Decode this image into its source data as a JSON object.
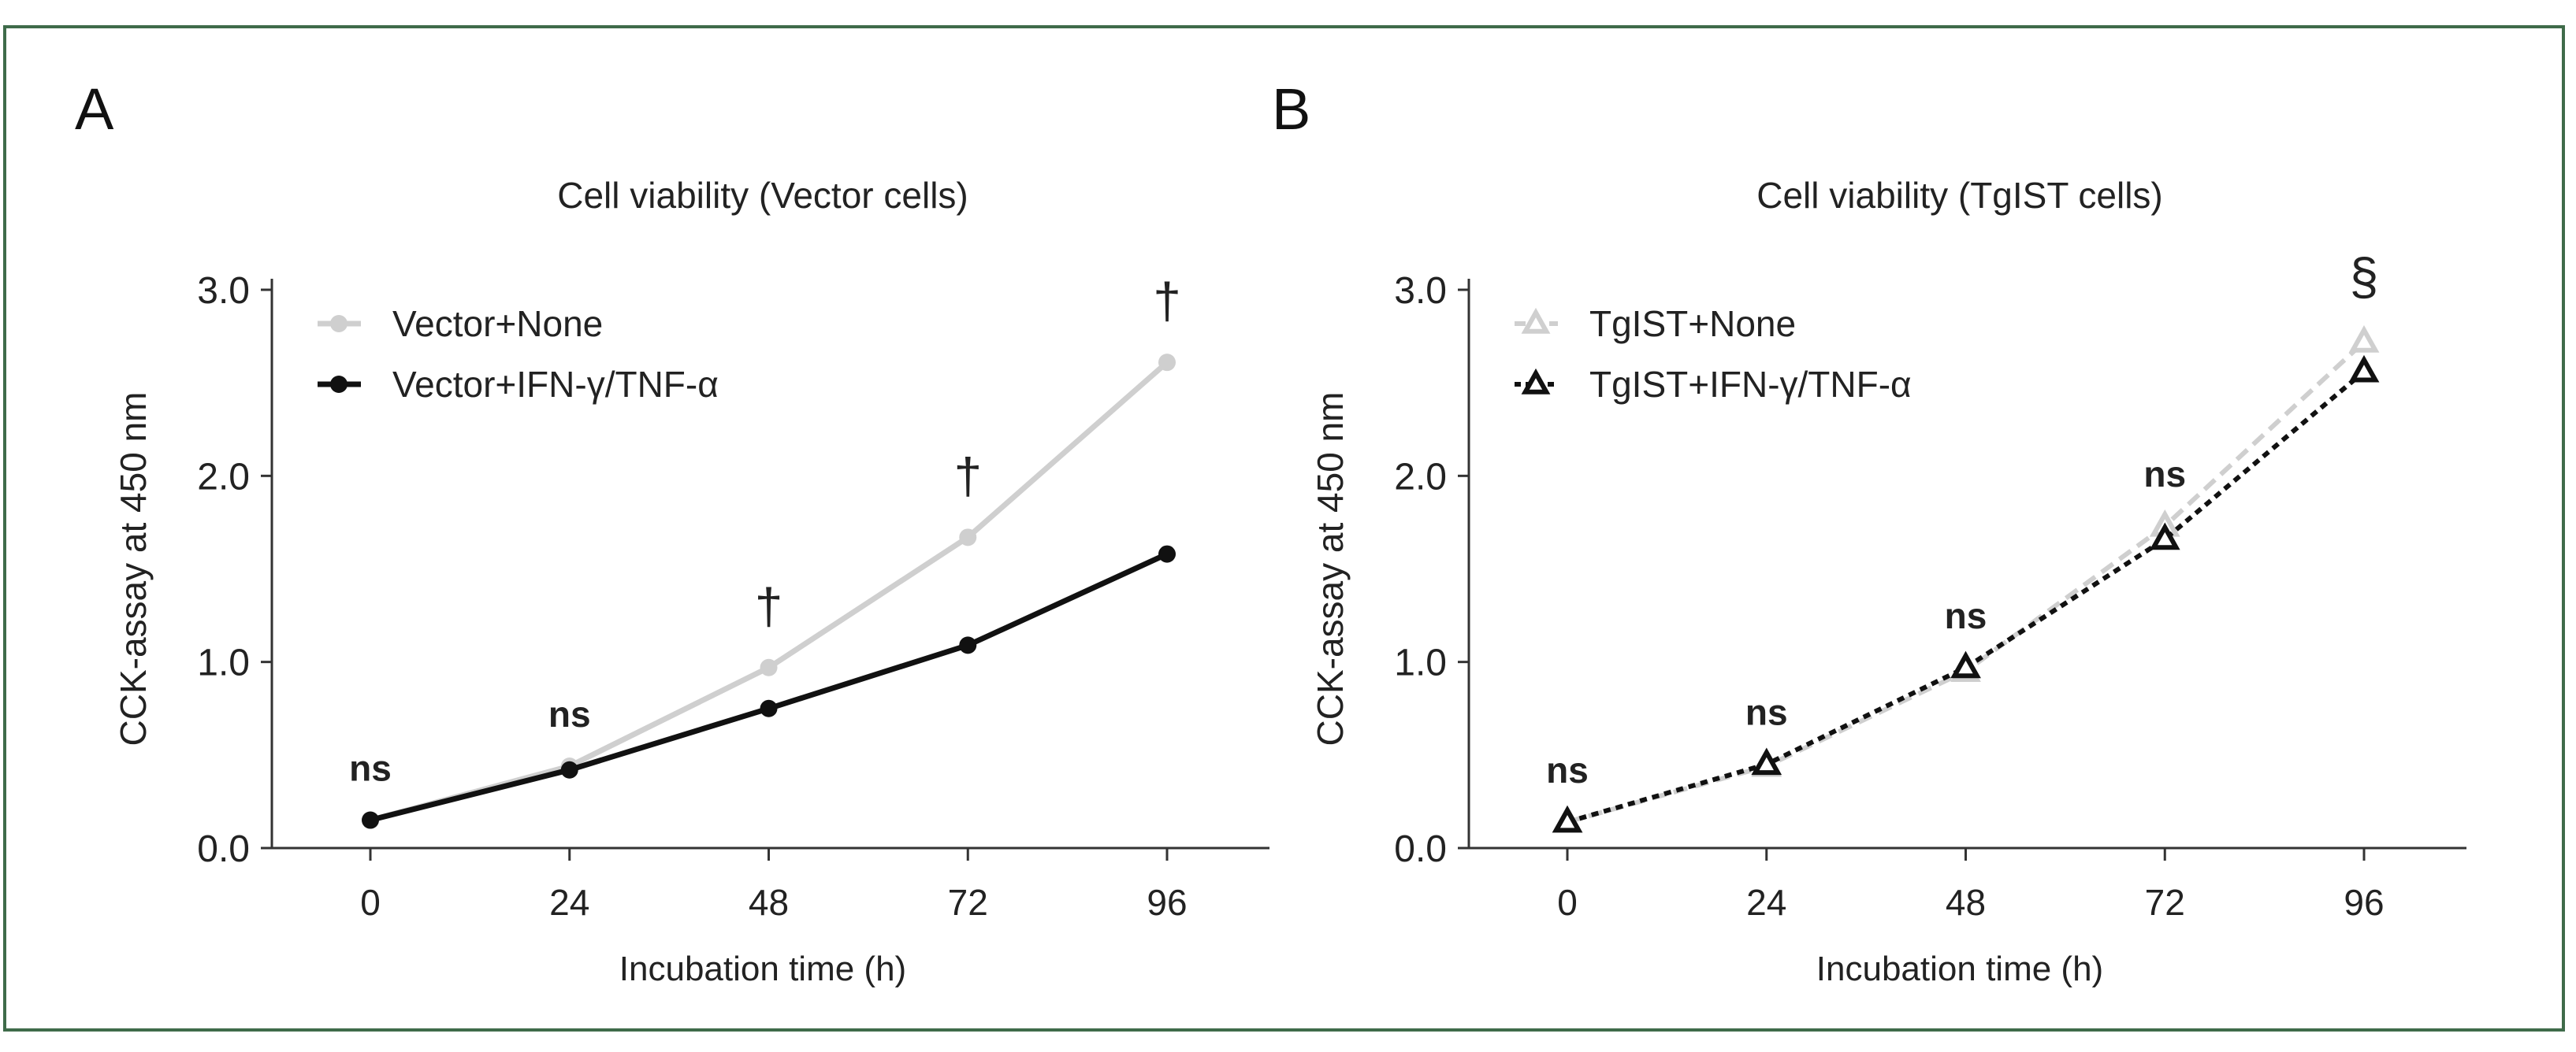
{
  "figure_border_color": "#3f6b4a",
  "chart_data": [
    {
      "panel_label": "A",
      "type": "line",
      "title": "Cell viability (Vector cells)",
      "xlabel": "Incubation time (h)",
      "ylabel": "CCK-assay at 450 nm",
      "x": [
        0,
        24,
        48,
        72,
        96
      ],
      "xticks": [
        "0",
        "24",
        "48",
        "72",
        "96"
      ],
      "yticks": [
        "0.0",
        "1.0",
        "2.0",
        "3.0"
      ],
      "ylim": [
        0,
        3.0
      ],
      "legend_position": "top-left",
      "series": [
        {
          "name": "Vector+None",
          "values": [
            0.15,
            0.44,
            0.97,
            1.67,
            2.61
          ],
          "color": "#cfcfcf",
          "marker": "circle",
          "line": "solid"
        },
        {
          "name": "Vector+IFN-γ/TNF-α",
          "values": [
            0.15,
            0.42,
            0.75,
            1.09,
            1.58
          ],
          "color": "#111111",
          "marker": "circle",
          "line": "solid"
        }
      ],
      "annotations": [
        {
          "x": 0,
          "text": "ns",
          "style": "bold"
        },
        {
          "x": 24,
          "text": "ns",
          "style": "bold"
        },
        {
          "x": 48,
          "text": "†",
          "style": "dagger"
        },
        {
          "x": 72,
          "text": "†",
          "style": "dagger"
        },
        {
          "x": 96,
          "text": "†",
          "style": "dagger"
        }
      ]
    },
    {
      "panel_label": "B",
      "type": "line",
      "title": "Cell viability (TgIST cells)",
      "xlabel": "Incubation time (h)",
      "ylabel": "CCK-assay at 450 nm",
      "x": [
        0,
        24,
        48,
        72,
        96
      ],
      "xticks": [
        "0",
        "24",
        "48",
        "72",
        "96"
      ],
      "yticks": [
        "0.0",
        "1.0",
        "2.0",
        "3.0"
      ],
      "ylim": [
        0,
        3.0
      ],
      "legend_position": "top-left",
      "series": [
        {
          "name": "TgIST+None",
          "values": [
            0.14,
            0.44,
            0.95,
            1.73,
            2.72
          ],
          "color": "#cfcfcf",
          "marker": "triangle",
          "line": "dashed"
        },
        {
          "name": "TgIST+IFN-γ/TNF-α",
          "values": [
            0.14,
            0.45,
            0.97,
            1.66,
            2.56
          ],
          "color": "#111111",
          "marker": "triangle",
          "line": "dotted"
        }
      ],
      "annotations": [
        {
          "x": 0,
          "text": "ns",
          "style": "bold"
        },
        {
          "x": 24,
          "text": "ns",
          "style": "bold"
        },
        {
          "x": 48,
          "text": "ns",
          "style": "bold"
        },
        {
          "x": 72,
          "text": "ns",
          "style": "bold"
        },
        {
          "x": 96,
          "text": "§",
          "style": "section"
        }
      ]
    }
  ]
}
